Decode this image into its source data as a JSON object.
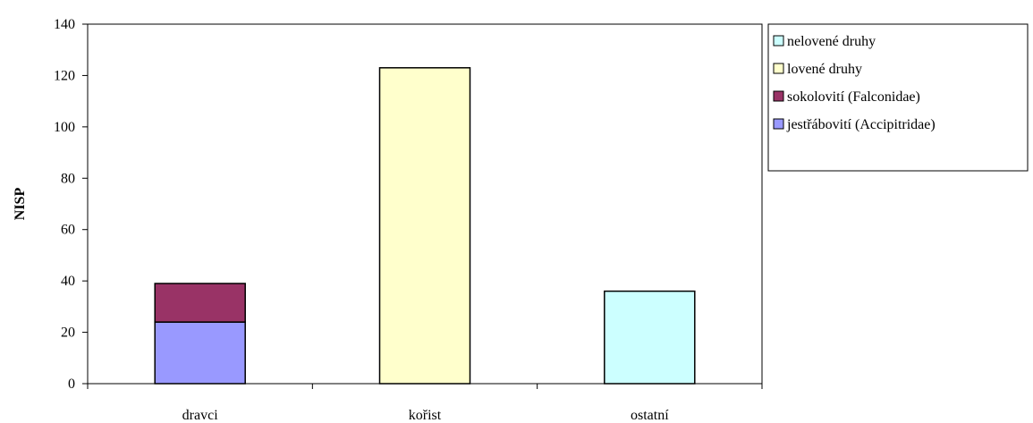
{
  "chart_data": {
    "type": "bar",
    "stacked": true,
    "categories": [
      "dravci",
      "kořist",
      "ostatní"
    ],
    "series": [
      {
        "name": "jestřábovití (Accipitridae)",
        "values": [
          24,
          0,
          0
        ],
        "color": "#9999ff"
      },
      {
        "name": "sokolovití (Falconidae)",
        "values": [
          15,
          0,
          0
        ],
        "color": "#993366"
      },
      {
        "name": "lovené druhy",
        "values": [
          0,
          123,
          0
        ],
        "color": "#ffffcc"
      },
      {
        "name": "nelovené druhy",
        "values": [
          0,
          0,
          36
        ],
        "color": "#ccffff"
      }
    ],
    "title": "",
    "xlabel": "",
    "ylabel": "NISP",
    "ylim": [
      0,
      140
    ],
    "yticks": [
      0,
      20,
      40,
      60,
      80,
      100,
      120,
      140
    ],
    "grid": false,
    "legend_position": "right",
    "legend_order": [
      "nelovené druhy",
      "lovené druhy",
      "sokolovití (Falconidae)",
      "jestřábovití (Accipitridae)"
    ]
  }
}
